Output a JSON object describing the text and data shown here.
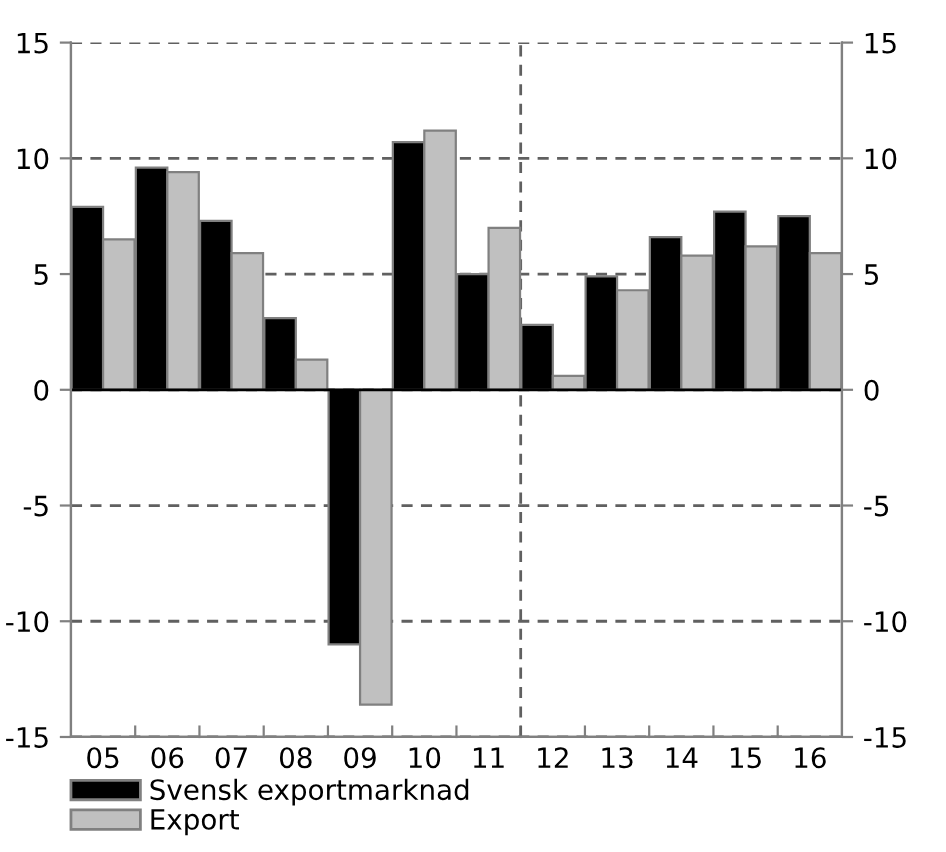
{
  "chart_data": {
    "type": "bar",
    "categories": [
      "05",
      "06",
      "07",
      "08",
      "09",
      "10",
      "11",
      "12",
      "13",
      "14",
      "15",
      "16"
    ],
    "series": [
      {
        "name": "Svensk exportmarknad",
        "color": "#000000",
        "values": [
          7.9,
          9.6,
          7.3,
          3.1,
          -11.0,
          10.7,
          5.0,
          2.8,
          4.9,
          6.6,
          7.7,
          7.5
        ]
      },
      {
        "name": "Export",
        "color": "#c0c0c0",
        "values": [
          6.5,
          9.4,
          5.9,
          1.3,
          -13.6,
          11.2,
          7.0,
          0.6,
          4.3,
          5.8,
          6.2,
          5.9
        ]
      }
    ],
    "ylim": [
      -15,
      15
    ],
    "yticks": [
      -15,
      -10,
      -5,
      0,
      5,
      10,
      15
    ],
    "y2lim": [
      -15,
      15
    ],
    "y2ticks": [
      -15,
      -10,
      -5,
      0,
      5,
      10,
      15
    ],
    "grid": "y",
    "legend": "bottom left"
  }
}
